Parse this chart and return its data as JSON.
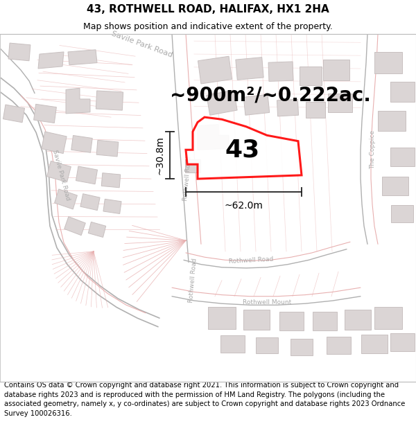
{
  "title": "43, ROTHWELL ROAD, HALIFAX, HX1 2HA",
  "subtitle": "Map shows position and indicative extent of the property.",
  "area_text": "~900m²/~0.222ac.",
  "number_label": "43",
  "dim_width": "~62.0m",
  "dim_height": "~30.8m",
  "footer_text": "Contains OS data © Crown copyright and database right 2021. This information is subject to Crown copyright and database rights 2023 and is reproduced with the permission of HM Land Registry. The polygons (including the associated geometry, namely x, y co-ordinates) are subject to Crown copyright and database rights 2023 Ordnance Survey 100026316.",
  "map_bg": "#f7f3f3",
  "road_line_color": "#e8b0b0",
  "road_fill_color": "#f0e8e8",
  "building_face_color": "#dbd5d5",
  "building_edge_color": "#c8c0c0",
  "plot_edge_color": "#ff0000",
  "plot_fill": "#ffffff",
  "dim_line_color": "#222222",
  "label_color": "#aaaaaa",
  "title_fontsize": 11,
  "subtitle_fontsize": 9,
  "area_fontsize": 20,
  "number_fontsize": 26,
  "dim_fontsize": 10,
  "label_fontsize": 6.5,
  "footer_fontsize": 7.2
}
